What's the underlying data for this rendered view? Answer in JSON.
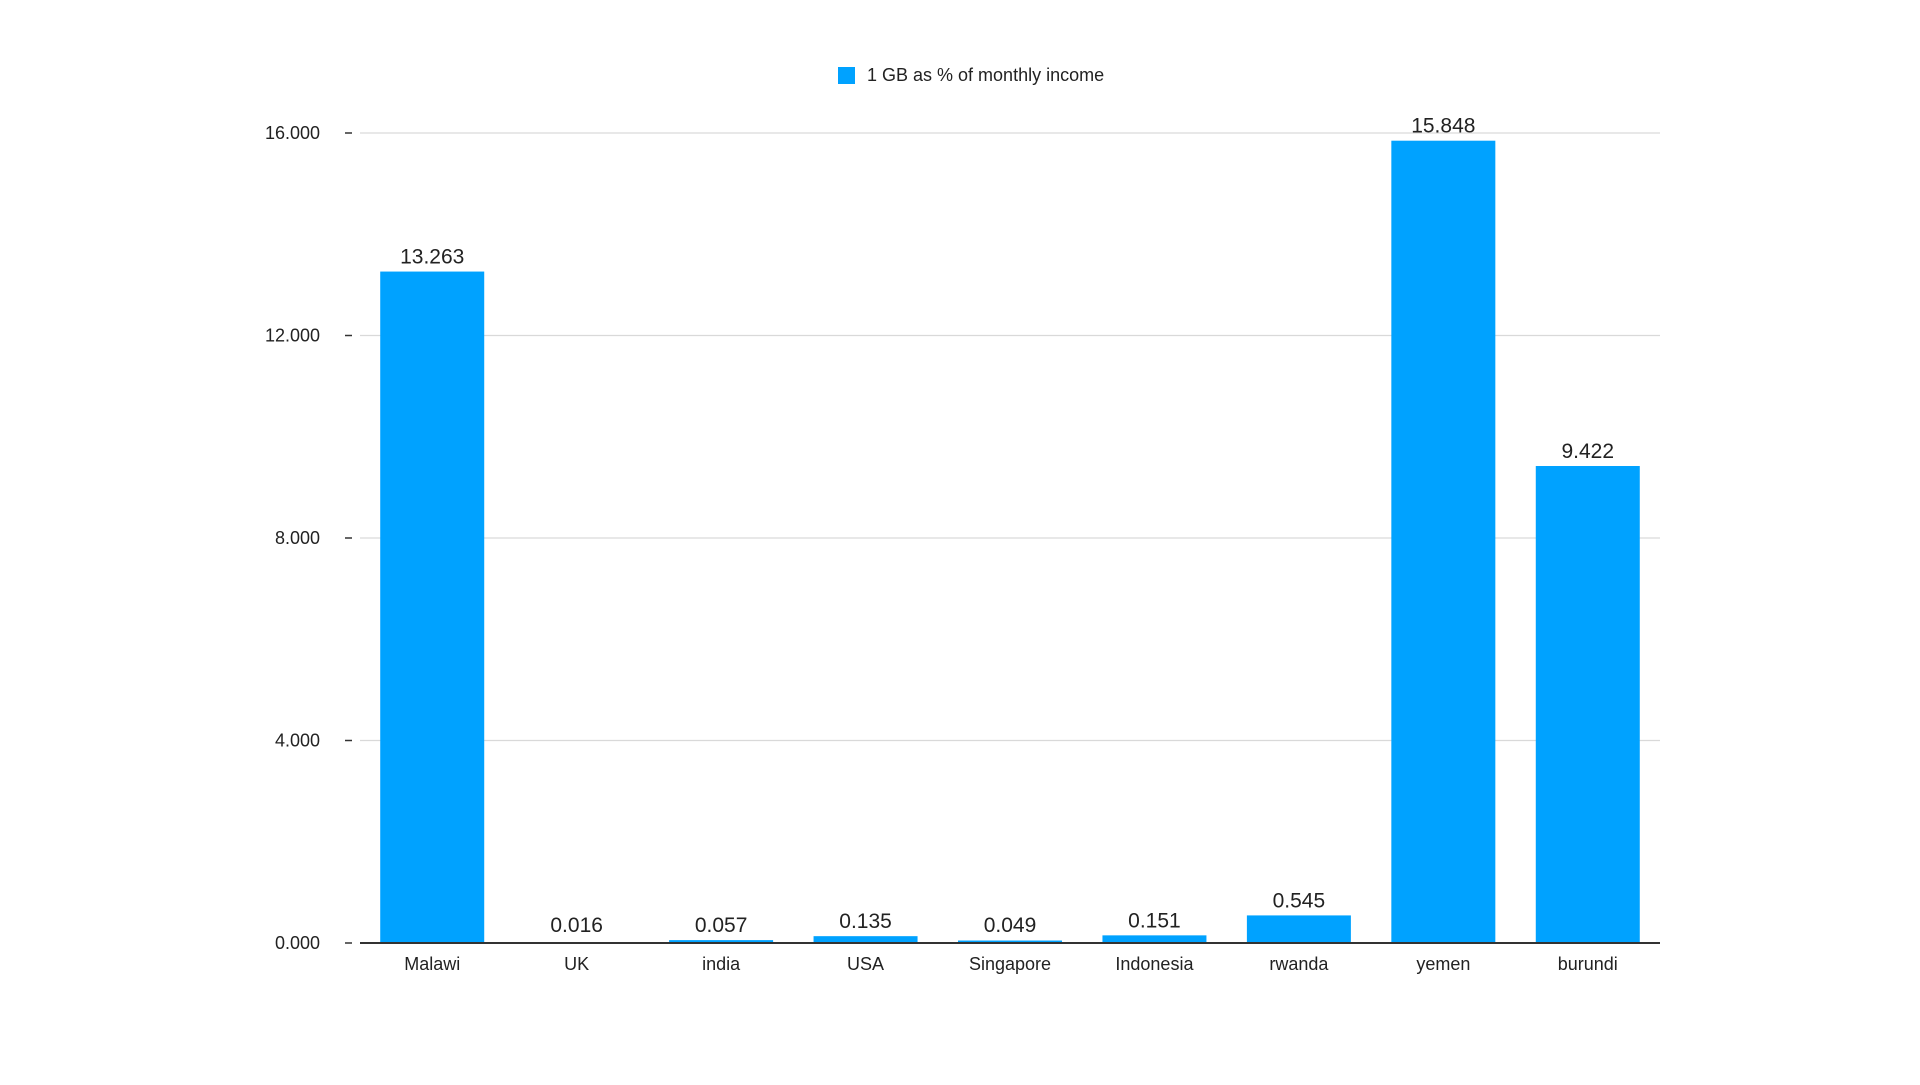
{
  "colors": {
    "bar": "#00a2ff",
    "grid": "#d9d9d9",
    "axis": "#333333",
    "text": "#222222"
  },
  "legend": {
    "label": "1 GB as % of monthly income"
  },
  "chart_data": {
    "type": "bar",
    "categories": [
      "Malawi",
      "UK",
      "india",
      "USA",
      "Singapore",
      "Indonesia",
      "rwanda",
      "yemen",
      "burundi"
    ],
    "series": [
      {
        "name": "1 GB as % of monthly income",
        "values": [
          13.263,
          0.016,
          0.057,
          0.135,
          0.049,
          0.151,
          0.545,
          15.848,
          9.422
        ]
      }
    ],
    "value_labels": [
      "13.263",
      "0.016",
      "0.057",
      "0.135",
      "0.049",
      "0.151",
      "0.545",
      "15.848",
      "9.422"
    ],
    "y_ticks": [
      0,
      4,
      8,
      12,
      16
    ],
    "y_tick_labels": [
      "0.000",
      "4.000",
      "8.000",
      "12.000",
      "16.000"
    ],
    "ylim": [
      0,
      16
    ],
    "grid": true,
    "legend_position": "top-center",
    "title": "",
    "xlabel": "",
    "ylabel": ""
  }
}
